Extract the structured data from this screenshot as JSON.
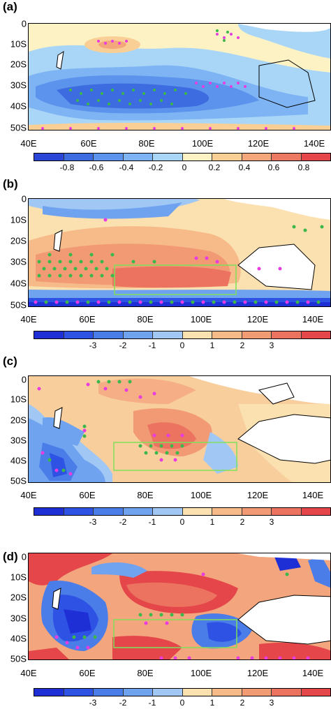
{
  "y_ticks": [
    "0",
    "10S",
    "20S",
    "30S",
    "40S",
    "50S"
  ],
  "x_ticks": [
    "40E",
    "60E",
    "80E",
    "100E",
    "120E",
    "140E"
  ],
  "colors": {
    "land": "#ffffff",
    "stipple_green": "#3cb84a",
    "stipple_magenta": "#e83ce0",
    "box": "#7fe05a",
    "coast": "#000000"
  },
  "panels": [
    {
      "label": "(a)",
      "colorbar": {
        "ticks": [
          "-0.8",
          "-0.6",
          "-0.4",
          "-0.2",
          "0",
          "0.2",
          "0.4",
          "0.6",
          "0.8"
        ],
        "colors": [
          "#2a46d6",
          "#3d6be0",
          "#5c93ec",
          "#7fb4f4",
          "#a9d6f7",
          "#fdf2c4",
          "#f9cf96",
          "#f4a77a",
          "#ec7a62",
          "#e4464a"
        ]
      },
      "has_box": false
    },
    {
      "label": "(b)",
      "colorbar": {
        "ticks": [
          "-3",
          "-2",
          "-1",
          "0",
          "1",
          "2",
          "3"
        ],
        "colors": [
          "#1f2fd6",
          "#2e52e4",
          "#4a7de8",
          "#6fa3f0",
          "#a1c8f4",
          "#fbe0b0",
          "#f7bb8a",
          "#f19a74",
          "#eb7360",
          "#e4464a"
        ]
      },
      "has_box": true
    },
    {
      "label": "(c)",
      "colorbar": {
        "ticks": [
          "-3",
          "-2",
          "-1",
          "0",
          "1",
          "2",
          "3"
        ],
        "colors": [
          "#1f2fd6",
          "#2e52e4",
          "#4a7de8",
          "#6fa3f0",
          "#a1c8f4",
          "#fbe0b0",
          "#f7bb8a",
          "#f19a74",
          "#eb7360",
          "#e4464a"
        ]
      },
      "has_box": true
    },
    {
      "label": "(d)",
      "colorbar": {
        "ticks": [
          "-3",
          "-2",
          "-1",
          "0",
          "1",
          "2",
          "3"
        ],
        "colors": [
          "#1f2fd6",
          "#2e52e4",
          "#4a7de8",
          "#6fa3f0",
          "#a1c8f4",
          "#fbe0b0",
          "#f7bb8a",
          "#f19a74",
          "#eb7360",
          "#e4464a"
        ]
      },
      "has_box": true
    }
  ]
}
